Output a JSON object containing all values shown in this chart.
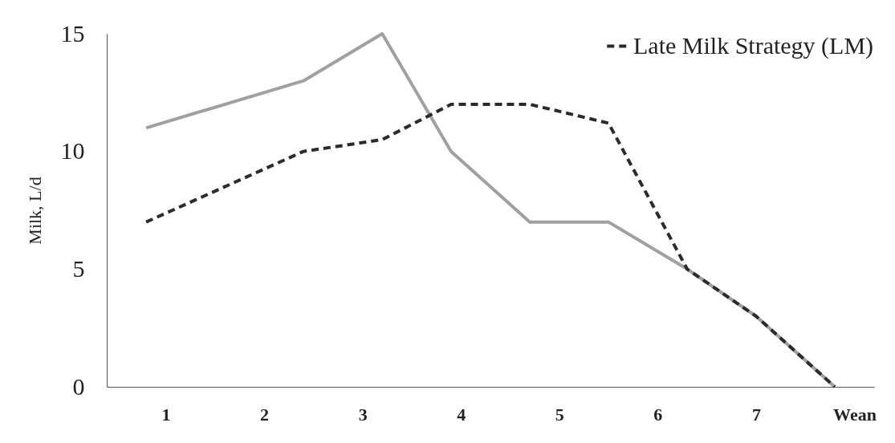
{
  "chart_data": {
    "type": "line",
    "ylabel": "Milk, L/d",
    "xlim": [
      0.4,
      8.2
    ],
    "xticks": [
      1,
      2,
      3,
      4,
      5,
      6,
      7,
      {
        "value": 8,
        "label": "Wean"
      }
    ],
    "ylim": [
      0,
      15
    ],
    "yticks": [
      0,
      5,
      10,
      15
    ],
    "grid": false,
    "legend": "top right",
    "marker": "none",
    "series": [
      {
        "color": "#a0a0a2",
        "line_style": "solid",
        "x": [
          0.8,
          2.4,
          3.2,
          3.9,
          4.7,
          5.5,
          6.3,
          7.0,
          7.8
        ],
        "values": [
          11,
          13,
          15,
          10,
          7,
          7,
          5,
          3,
          0
        ]
      },
      {
        "name": "Late Milk Strategy (LM)",
        "color": "#2a2b30",
        "line_style": "dashed",
        "x": [
          0.8,
          2.4,
          3.2,
          3.9,
          4.7,
          5.5,
          6.3,
          7.0,
          7.8
        ],
        "values": [
          7,
          10,
          10.5,
          12,
          12,
          11.2,
          5,
          3,
          0
        ]
      }
    ]
  }
}
